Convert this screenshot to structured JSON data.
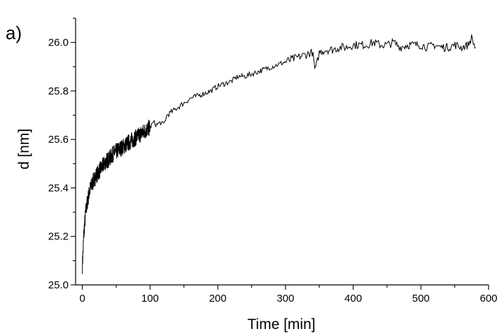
{
  "panel_label": "a)",
  "chart_data": {
    "type": "line",
    "title": "",
    "xlabel": "Time [min]",
    "ylabel": "d [nm]",
    "xlim": [
      -10,
      600
    ],
    "ylim": [
      25.0,
      26.1
    ],
    "x_ticks": [
      0,
      100,
      200,
      300,
      400,
      500,
      600
    ],
    "x_tick_labels": [
      "0",
      "100",
      "200",
      "300",
      "400",
      "500",
      "600"
    ],
    "y_ticks": [
      25.0,
      25.2,
      25.4,
      25.6,
      25.8,
      26.0
    ],
    "y_tick_labels": [
      "25.0",
      "25.2",
      "25.4",
      "25.6",
      "25.8",
      "26.0"
    ],
    "grid": false,
    "legend": "none",
    "line_color": "#000000",
    "series": [
      {
        "x": [
          0,
          1,
          2,
          3,
          4,
          5,
          6,
          8,
          10,
          12,
          15,
          20,
          25,
          30,
          35,
          40,
          45,
          50,
          55,
          60,
          65,
          70,
          75,
          80,
          85,
          90,
          95,
          100,
          105,
          110,
          115,
          120,
          125,
          130,
          140,
          150,
          160,
          170,
          180,
          190,
          200,
          210,
          220,
          230,
          240,
          250,
          260,
          270,
          280,
          290,
          300,
          310,
          320,
          330,
          340,
          344,
          350,
          360,
          370,
          380,
          390,
          400,
          410,
          420,
          430,
          440,
          450,
          460,
          470,
          480,
          490,
          500,
          510,
          520,
          530,
          540,
          550,
          560,
          570,
          575,
          580
        ],
        "y": [
          25.08,
          25.14,
          25.2,
          25.24,
          25.27,
          25.3,
          25.32,
          25.35,
          25.38,
          25.4,
          25.42,
          25.45,
          25.47,
          25.49,
          25.51,
          25.52,
          25.54,
          25.55,
          25.56,
          25.57,
          25.58,
          25.59,
          25.6,
          25.61,
          25.62,
          25.63,
          25.64,
          25.65,
          25.67,
          25.66,
          25.67,
          25.66,
          25.7,
          25.71,
          25.73,
          25.75,
          25.77,
          25.78,
          25.79,
          25.8,
          25.82,
          25.83,
          25.84,
          25.86,
          25.86,
          25.87,
          25.88,
          25.89,
          25.9,
          25.91,
          25.92,
          25.93,
          25.94,
          25.95,
          25.96,
          25.88,
          25.96,
          25.97,
          25.97,
          25.98,
          25.98,
          25.99,
          25.99,
          25.99,
          26.0,
          25.99,
          25.99,
          26.0,
          25.98,
          25.99,
          25.99,
          25.99,
          25.98,
          25.99,
          25.98,
          25.98,
          25.99,
          25.98,
          25.99,
          26.02,
          25.98
        ]
      }
    ]
  }
}
